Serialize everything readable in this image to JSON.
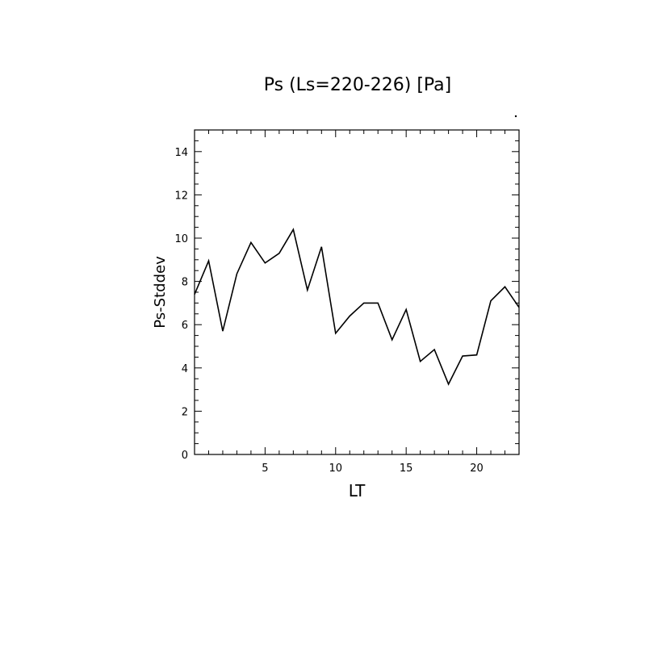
{
  "chart_data": {
    "type": "line",
    "title": "Ps (Ls=220-226) [Pa]",
    "xlabel": "LT",
    "ylabel": "Ps-Stddev",
    "xlim": [
      0.0,
      23.0
    ],
    "ylim": [
      0,
      15
    ],
    "xticks": [
      5,
      10,
      15,
      20
    ],
    "xtick_labels": [
      "5",
      "10",
      "15",
      "20"
    ],
    "yticks": [
      0,
      2,
      4,
      6,
      8,
      10,
      12,
      14
    ],
    "ytick_labels": [
      "0",
      "2",
      "4",
      "6",
      "8",
      "10",
      "12",
      "14"
    ],
    "grid": false,
    "series": [
      {
        "x": [
          0.0,
          1.0,
          2.0,
          3.0,
          4.0,
          5.0,
          6.0,
          7.0,
          8.0,
          9.0,
          10.0,
          11.0,
          12.0,
          13.0,
          14.0,
          15.0,
          16.0,
          17.0,
          18.0,
          19.0,
          20.0,
          21.0,
          22.0,
          23.0
        ],
        "values": [
          7.4,
          8.95,
          5.7,
          8.35,
          9.8,
          8.85,
          9.3,
          10.4,
          7.6,
          9.6,
          5.6,
          6.4,
          7.0,
          7.0,
          5.3,
          6.7,
          4.3,
          4.85,
          3.25,
          4.55,
          4.6,
          7.1,
          7.75,
          6.8
        ]
      }
    ]
  }
}
